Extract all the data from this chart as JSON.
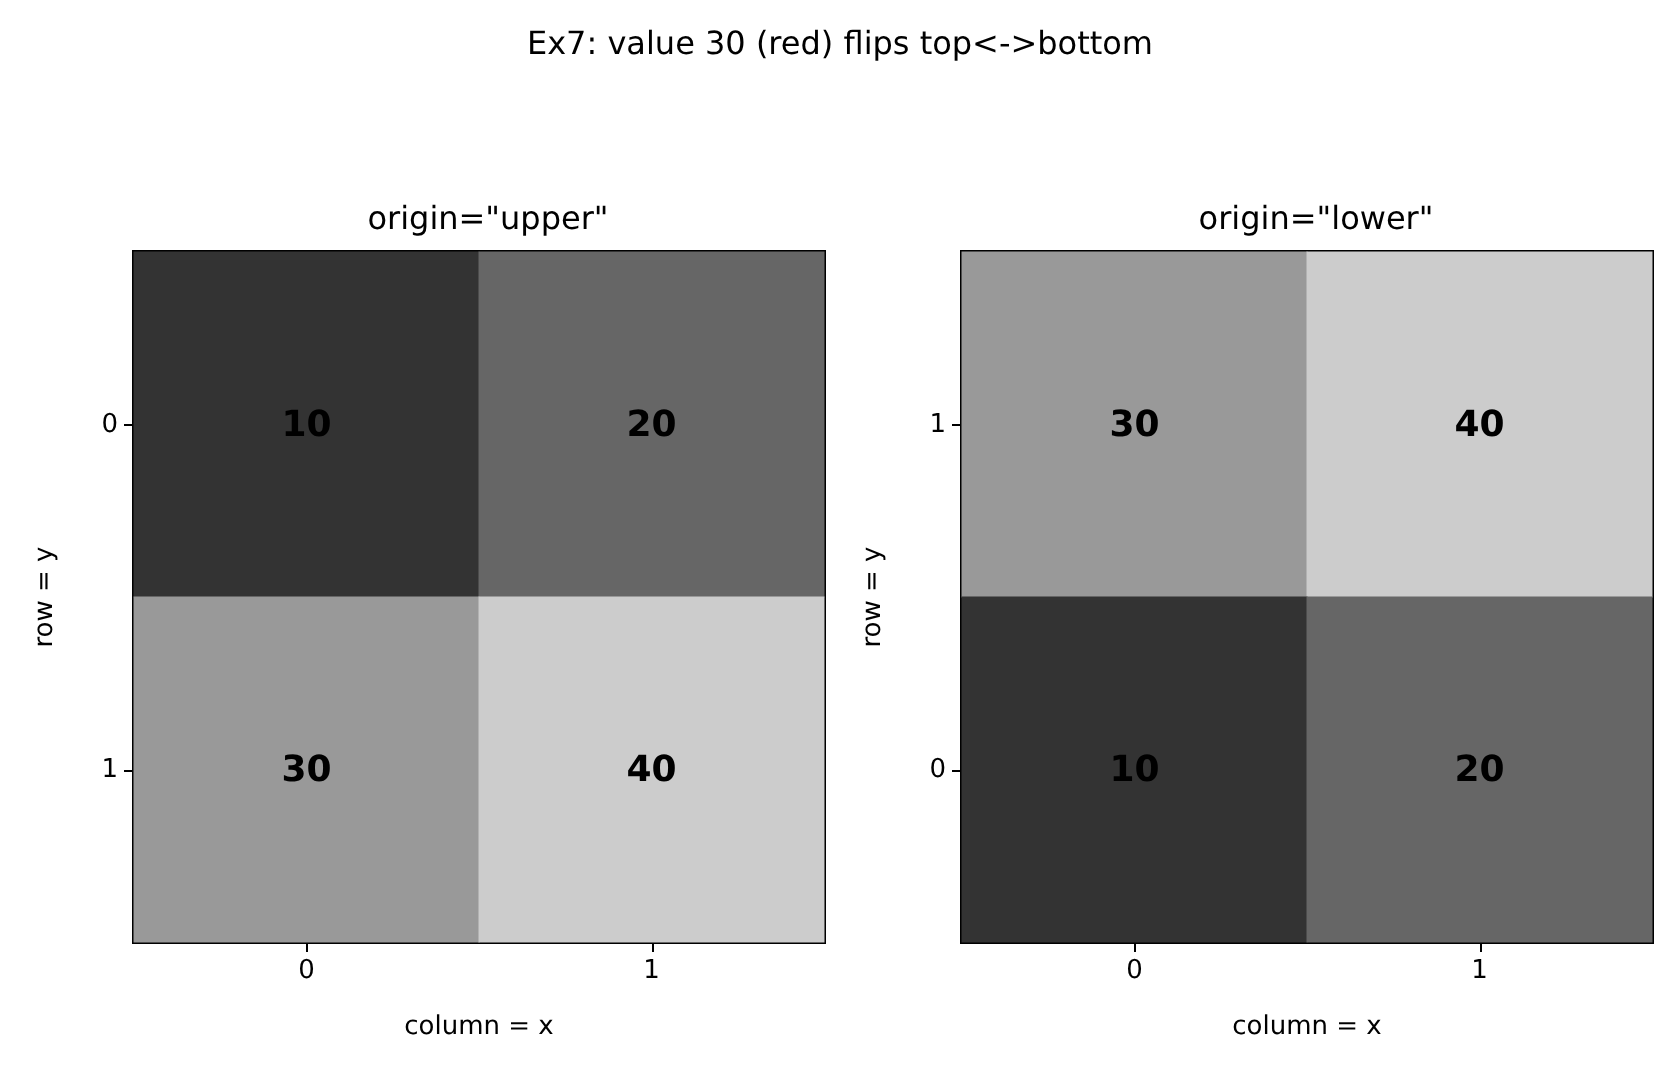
{
  "chart_data": [
    {
      "type": "heatmap",
      "title": "origin=\"upper\"",
      "xlabel": "column = x",
      "ylabel": "row = y",
      "categories": [
        "0",
        "1"
      ],
      "y_categories": [
        "0",
        "1"
      ],
      "cells": [
        [
          10,
          20
        ],
        [
          30,
          40
        ]
      ],
      "data_labels": true,
      "annotations": [
        "Ex7: value 30 (red) flips top<->bottom"
      ]
    },
    {
      "type": "heatmap",
      "title": "origin=\"lower\"",
      "xlabel": "column = x",
      "ylabel": "row = y",
      "categories": [
        "0",
        "1"
      ],
      "y_categories": [
        "1",
        "0"
      ],
      "cells": [
        [
          30,
          40
        ],
        [
          10,
          20
        ]
      ],
      "data_labels": true
    }
  ]
}
